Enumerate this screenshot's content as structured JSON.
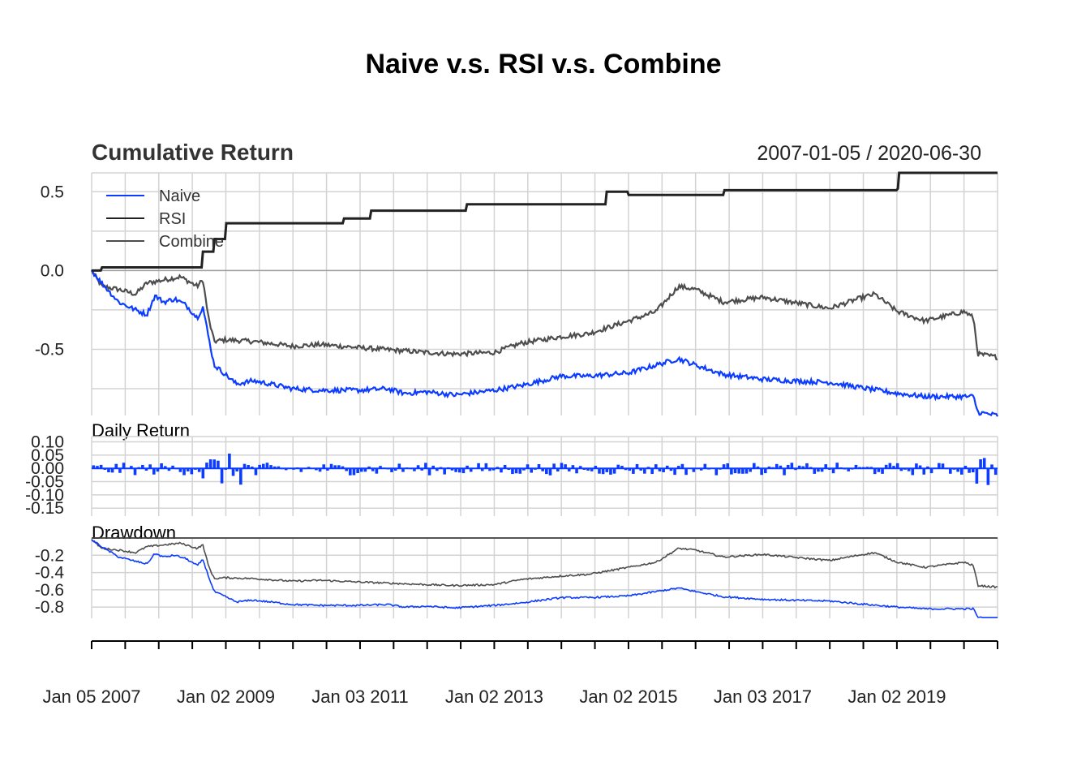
{
  "chart_data": {
    "type": "line",
    "title": "Naive v.s. RSI v.s. Combine",
    "subtitle": "Cumulative Return",
    "date_range": "2007-01-05 / 2020-06-30",
    "x_tick_labels": [
      "Jan 05 2007",
      "Jan 02 2009",
      "Jan 03 2011",
      "Jan 02 2013",
      "Jan 02 2015",
      "Jan 03 2017",
      "Jan 02 2019"
    ],
    "x_range": [
      "2007-01-05",
      "2020-06-30"
    ],
    "legend": {
      "position": "top-left",
      "entries": [
        "Naive",
        "RSI",
        "Combine"
      ]
    },
    "colors": {
      "Naive": "#0b3cff",
      "RSI": "#222222",
      "Combine": "#4d4d4d"
    },
    "panels": [
      {
        "name": "Cumulative Return",
        "yticks": [
          "0.5",
          "0.0",
          "-0.5"
        ],
        "ylim": [
          -0.92,
          0.62
        ],
        "series": [
          {
            "name": "Naive",
            "points": [
              [
                "2007-01-05",
                0.0
              ],
              [
                "2007-03-01",
                -0.08
              ],
              [
                "2007-06-01",
                -0.2
              ],
              [
                "2007-09-01",
                -0.25
              ],
              [
                "2007-11-01",
                -0.28
              ],
              [
                "2007-12-15",
                -0.16
              ],
              [
                "2008-02-01",
                -0.2
              ],
              [
                "2008-04-01",
                -0.18
              ],
              [
                "2008-06-01",
                -0.22
              ],
              [
                "2008-08-01",
                -0.3
              ],
              [
                "2008-09-01",
                -0.23
              ],
              [
                "2008-10-01",
                -0.42
              ],
              [
                "2008-11-01",
                -0.6
              ],
              [
                "2009-01-02",
                -0.66
              ],
              [
                "2009-03-01",
                -0.72
              ],
              [
                "2009-06-01",
                -0.7
              ],
              [
                "2009-09-01",
                -0.72
              ],
              [
                "2010-01-01",
                -0.75
              ],
              [
                "2010-06-01",
                -0.76
              ],
              [
                "2011-01-03",
                -0.76
              ],
              [
                "2011-06-01",
                -0.75
              ],
              [
                "2011-09-01",
                -0.78
              ],
              [
                "2012-01-01",
                -0.77
              ],
              [
                "2012-06-01",
                -0.79
              ],
              [
                "2013-01-02",
                -0.76
              ],
              [
                "2013-06-01",
                -0.73
              ],
              [
                "2014-01-01",
                -0.67
              ],
              [
                "2014-06-01",
                -0.67
              ],
              [
                "2015-01-02",
                -0.65
              ],
              [
                "2015-06-01",
                -0.6
              ],
              [
                "2015-10-01",
                -0.56
              ],
              [
                "2016-01-01",
                -0.6
              ],
              [
                "2016-06-01",
                -0.66
              ],
              [
                "2017-01-03",
                -0.69
              ],
              [
                "2017-06-01",
                -0.7
              ],
              [
                "2018-01-01",
                -0.71
              ],
              [
                "2018-06-01",
                -0.74
              ],
              [
                "2019-01-02",
                -0.78
              ],
              [
                "2019-06-01",
                -0.8
              ],
              [
                "2020-01-01",
                -0.8
              ],
              [
                "2020-02-20",
                -0.8
              ],
              [
                "2020-03-15",
                -0.9
              ],
              [
                "2020-06-30",
                -0.92
              ]
            ]
          },
          {
            "name": "RSI",
            "points": [
              [
                "2007-01-05",
                0.0
              ],
              [
                "2007-03-01",
                0.02
              ],
              [
                "2008-08-01",
                0.02
              ],
              [
                "2008-09-01",
                0.12
              ],
              [
                "2008-11-01",
                0.2
              ],
              [
                "2009-01-02",
                0.3
              ],
              [
                "2010-10-01",
                0.33
              ],
              [
                "2011-03-01",
                0.38
              ],
              [
                "2012-08-01",
                0.42
              ],
              [
                "2014-09-01",
                0.5
              ],
              [
                "2015-01-02",
                0.48
              ],
              [
                "2016-06-01",
                0.51
              ],
              [
                "2019-01-02",
                0.52
              ],
              [
                "2019-01-10",
                0.62
              ],
              [
                "2020-06-30",
                0.62
              ]
            ]
          },
          {
            "name": "Combine",
            "points": [
              [
                "2007-01-05",
                0.0
              ],
              [
                "2007-03-01",
                -0.1
              ],
              [
                "2007-06-01",
                -0.12
              ],
              [
                "2007-09-01",
                -0.15
              ],
              [
                "2007-11-01",
                -0.08
              ],
              [
                "2008-02-01",
                -0.06
              ],
              [
                "2008-05-01",
                -0.04
              ],
              [
                "2008-08-01",
                -0.1
              ],
              [
                "2008-09-01",
                -0.06
              ],
              [
                "2008-10-01",
                -0.3
              ],
              [
                "2008-11-01",
                -0.45
              ],
              [
                "2009-01-02",
                -0.44
              ],
              [
                "2009-06-01",
                -0.45
              ],
              [
                "2010-01-01",
                -0.48
              ],
              [
                "2010-06-01",
                -0.47
              ],
              [
                "2011-01-03",
                -0.49
              ],
              [
                "2012-01-01",
                -0.52
              ],
              [
                "2012-06-01",
                -0.53
              ],
              [
                "2013-01-02",
                -0.52
              ],
              [
                "2013-06-01",
                -0.46
              ],
              [
                "2014-01-01",
                -0.42
              ],
              [
                "2014-06-01",
                -0.4
              ],
              [
                "2015-01-02",
                -0.32
              ],
              [
                "2015-06-01",
                -0.26
              ],
              [
                "2015-10-01",
                -0.1
              ],
              [
                "2016-01-01",
                -0.12
              ],
              [
                "2016-06-01",
                -0.2
              ],
              [
                "2017-01-03",
                -0.17
              ],
              [
                "2017-06-01",
                -0.2
              ],
              [
                "2018-01-01",
                -0.24
              ],
              [
                "2018-06-01",
                -0.18
              ],
              [
                "2018-09-01",
                -0.15
              ],
              [
                "2019-01-02",
                -0.26
              ],
              [
                "2019-06-01",
                -0.32
              ],
              [
                "2020-01-01",
                -0.26
              ],
              [
                "2020-02-20",
                -0.3
              ],
              [
                "2020-03-15",
                -0.53
              ],
              [
                "2020-06-30",
                -0.55
              ]
            ]
          }
        ]
      },
      {
        "name": "Daily Return",
        "yticks": [
          "0.10",
          "0.05",
          "0.00",
          "-0.05",
          "-0.10",
          "-0.15"
        ],
        "ylim": [
          -0.18,
          0.12
        ]
      },
      {
        "name": "Drawdown",
        "yticks": [
          "-0.2",
          "-0.4",
          "-0.6",
          "-0.8"
        ],
        "ylim": [
          -0.93,
          0.0
        ]
      }
    ]
  }
}
